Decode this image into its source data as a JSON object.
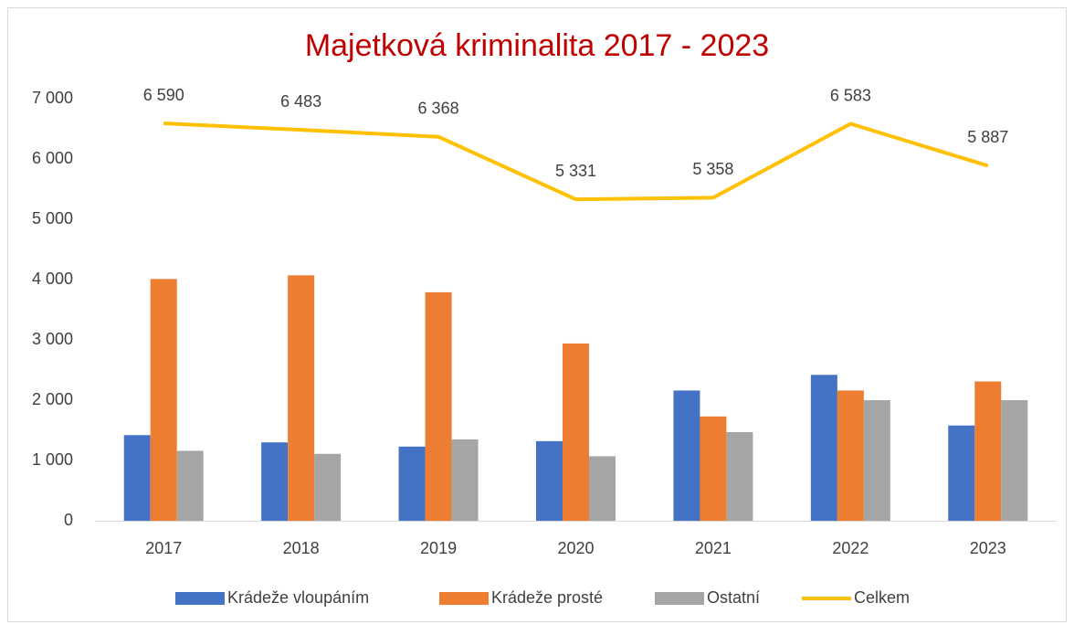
{
  "chart_data": {
    "type": "bar",
    "title": "Majetková kriminalita 2017 - 2023",
    "categories": [
      "2017",
      "2018",
      "2019",
      "2020",
      "2021",
      "2022",
      "2023"
    ],
    "series": [
      {
        "name": "Krádeže vloupáním",
        "color": "#4472c4",
        "values": [
          1420,
          1300,
          1230,
          1320,
          2160,
          2420,
          1580
        ]
      },
      {
        "name": "Krádeže prosté",
        "color": "#ed7d31",
        "values": [
          4010,
          4070,
          3790,
          2940,
          1730,
          2160,
          2310
        ]
      },
      {
        "name": "Ostatní",
        "color": "#a5a5a5",
        "values": [
          1160,
          1110,
          1350,
          1070,
          1470,
          2000,
          2000
        ]
      },
      {
        "name": "Celkem",
        "color": "#ffc000",
        "type": "line",
        "values": [
          6590,
          6483,
          6368,
          5331,
          5358,
          6583,
          5887
        ],
        "value_labels": [
          "6 590",
          "6 483",
          "6 368",
          "5 331",
          "5 358",
          "6 583",
          "5 887"
        ]
      }
    ],
    "ylim": [
      0,
      7000
    ],
    "yticks": [
      0,
      {
        "value": 1000,
        "label": "1 000"
      },
      {
        "value": 2000,
        "label": "2 000"
      },
      {
        "value": 3000,
        "label": "3 000"
      },
      {
        "value": 4000,
        "label": "4 000"
      },
      {
        "value": 5000,
        "label": "5 000"
      },
      {
        "value": 6000,
        "label": "6 000"
      },
      {
        "value": 7000,
        "label": "7 000"
      }
    ],
    "legend": "bottom"
  }
}
